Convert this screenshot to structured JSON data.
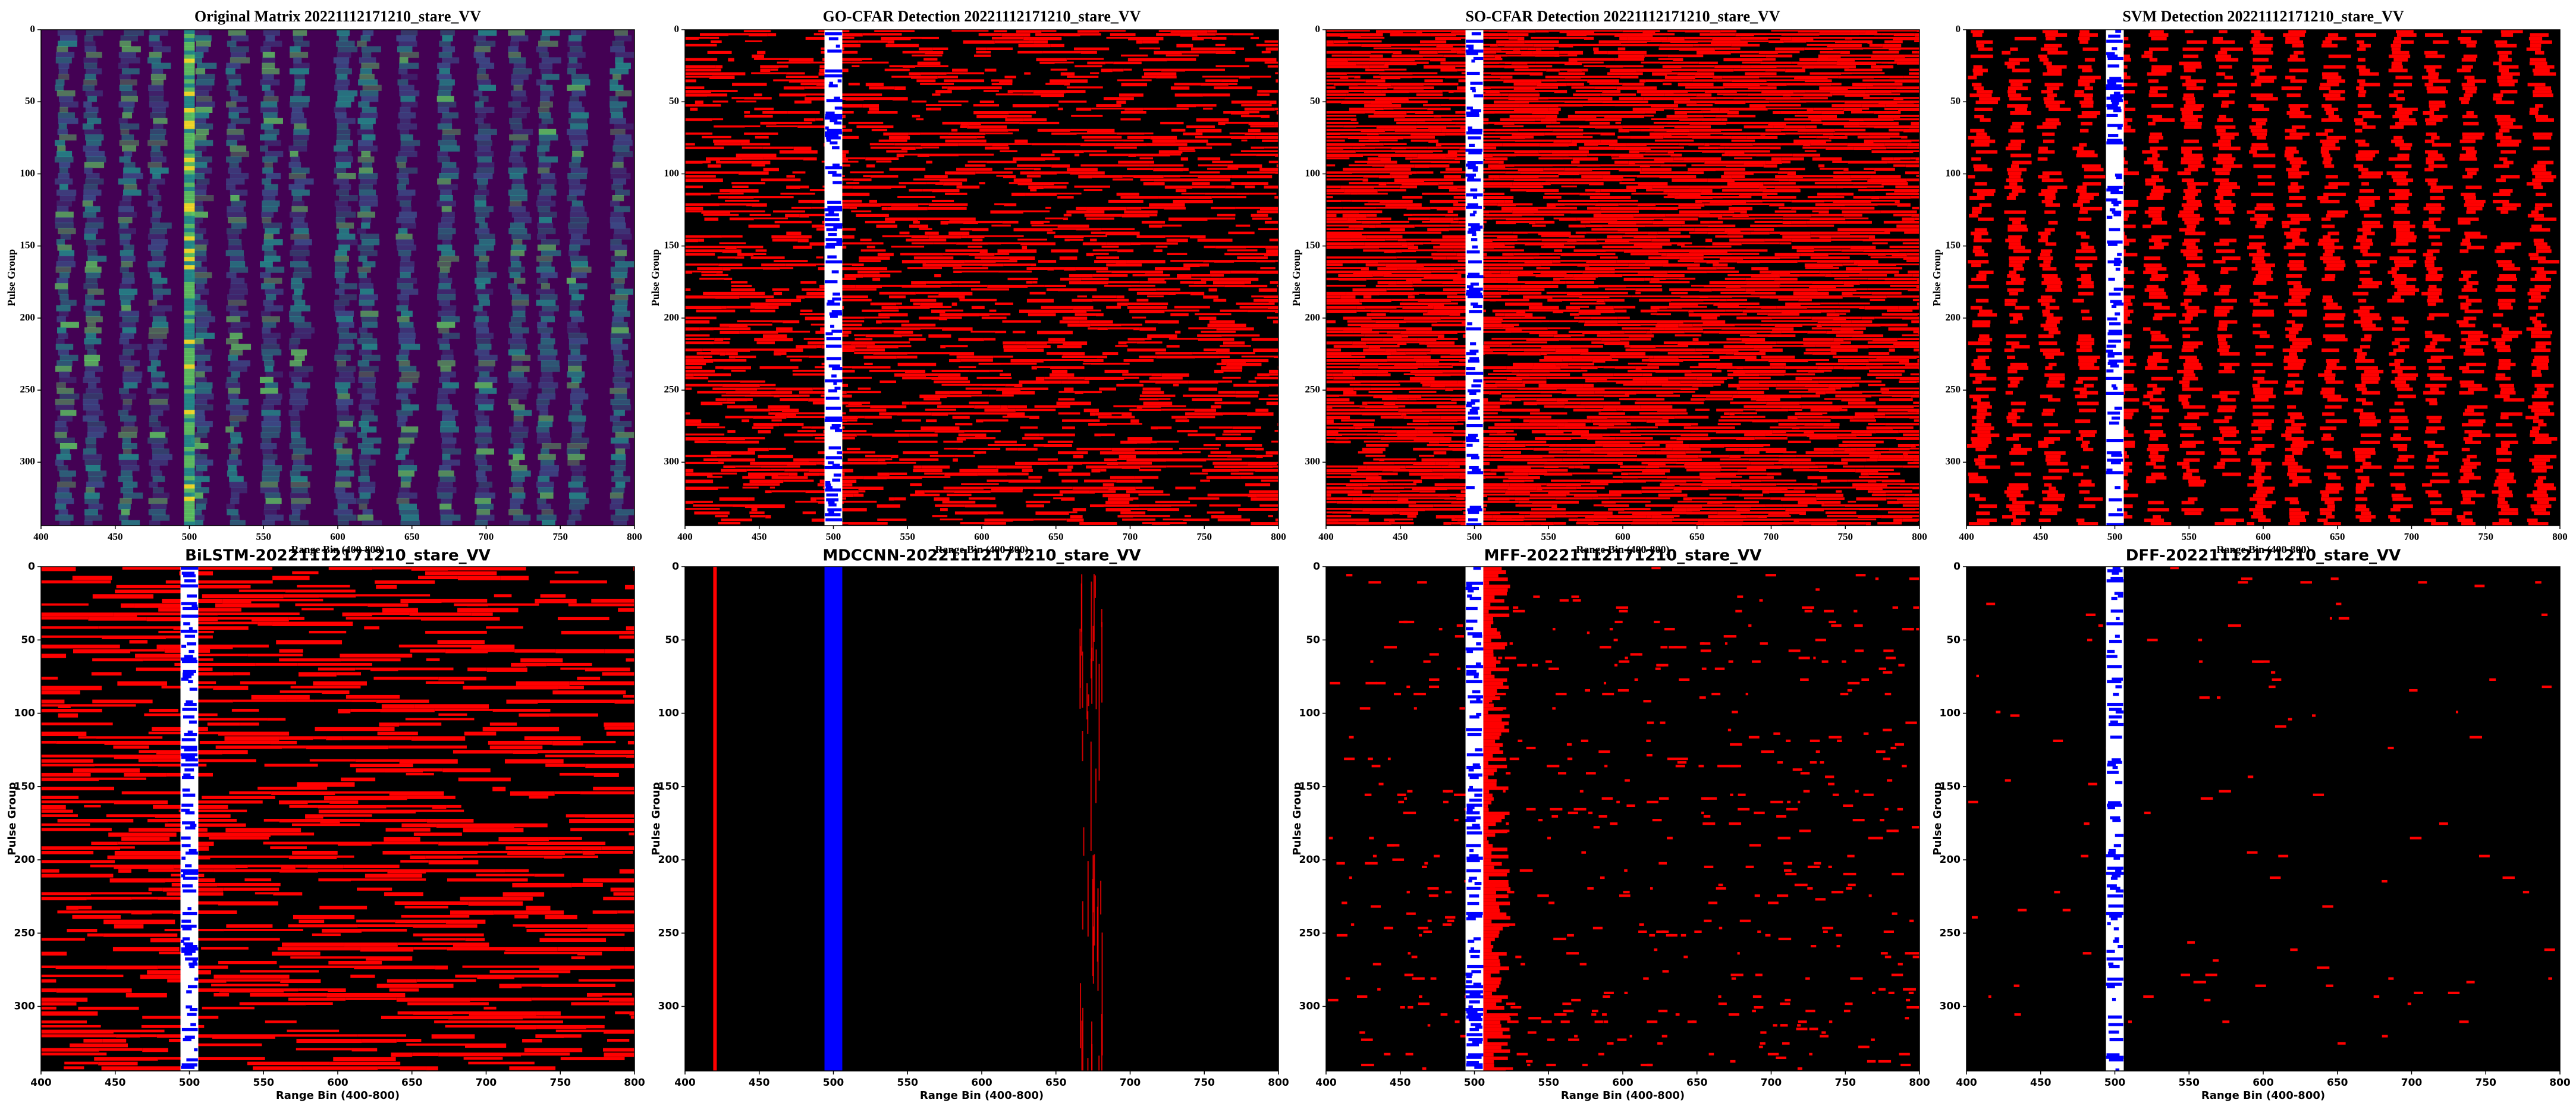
{
  "chart_data": [
    {
      "type": "heatmap",
      "title": "Original Matrix 20221112171210_stare_VV",
      "xlabel": "Range Bin (400-800)",
      "ylabel": "Pulse Group",
      "xlim": [
        400,
        800
      ],
      "xticks": [
        400,
        450,
        500,
        550,
        600,
        650,
        700,
        750,
        800
      ],
      "ylim": [
        344,
        0
      ],
      "yticks": [
        0,
        50,
        100,
        150,
        200,
        250,
        300
      ],
      "colormap": [
        "#440154",
        "#3b528b",
        "#21918c",
        "#5ec962",
        "#fde725"
      ]
    },
    {
      "type": "detection",
      "title": "GO-CFAR Detection 20221112171210_stare_VV",
      "xlabel": "Range Bin (400-800)",
      "ylabel": "Pulse Group",
      "xlim": [
        400,
        800
      ],
      "xticks": [
        400,
        450,
        500,
        550,
        600,
        650,
        700,
        750,
        800
      ],
      "ylim": [
        344,
        0
      ],
      "yticks": [
        0,
        50,
        100,
        150,
        200,
        250,
        300
      ],
      "background": "#000000",
      "detection_color": "#ff0000",
      "target_bins": [
        494,
        506
      ],
      "target_background": "#ffffff",
      "target_color": "#0000ff"
    },
    {
      "type": "detection",
      "title": "SO-CFAR Detection 20221112171210_stare_VV",
      "xlabel": "Range Bin (400-800)",
      "ylabel": "Pulse Group",
      "xlim": [
        400,
        800
      ],
      "xticks": [
        400,
        450,
        500,
        550,
        600,
        650,
        700,
        750,
        800
      ],
      "ylim": [
        344,
        0
      ],
      "yticks": [
        0,
        50,
        100,
        150,
        200,
        250,
        300
      ],
      "background": "#000000",
      "detection_color": "#ff0000",
      "target_bins": [
        494,
        506
      ],
      "target_background": "#ffffff",
      "target_color": "#0000ff"
    },
    {
      "type": "detection",
      "title": "SVM Detection 20221112171210_stare_VV",
      "xlabel": "Range Bin (400-800)",
      "ylabel": "Pulse Group",
      "xlim": [
        400,
        800
      ],
      "xticks": [
        400,
        450,
        500,
        550,
        600,
        650,
        700,
        750,
        800
      ],
      "ylim": [
        344,
        0
      ],
      "yticks": [
        0,
        50,
        100,
        150,
        200,
        250,
        300
      ],
      "background": "#000000",
      "detection_color": "#ff0000",
      "target_bins": [
        494,
        506
      ],
      "target_background": "#ffffff",
      "target_color": "#0000ff"
    },
    {
      "type": "detection",
      "title": "BiLSTM-20221112171210_stare_VV",
      "xlabel": "Range Bin (400-800)",
      "ylabel": "Pulse Group",
      "xlim": [
        400,
        800
      ],
      "xticks": [
        400,
        450,
        500,
        550,
        600,
        650,
        700,
        750,
        800
      ],
      "ylim": [
        344,
        0
      ],
      "yticks": [
        0,
        50,
        100,
        150,
        200,
        250,
        300
      ],
      "background": "#000000",
      "detection_color": "#ff0000",
      "target_bins": [
        494,
        506
      ],
      "target_background": "#ffffff",
      "target_color": "#0000ff"
    },
    {
      "type": "detection",
      "title": "MDCCNN-20221112171210_stare_VV",
      "xlabel": "Range Bin (400-800)",
      "ylabel": "Pulse Group",
      "xlim": [
        400,
        800
      ],
      "xticks": [
        400,
        450,
        500,
        550,
        600,
        650,
        700,
        750,
        800
      ],
      "ylim": [
        344,
        0
      ],
      "yticks": [
        0,
        50,
        100,
        150,
        200,
        250,
        300
      ],
      "background": "#000000",
      "detection_color": "#ff0000",
      "target_bins": [
        494,
        506
      ],
      "target_background": "#0000ff",
      "target_color": "#0000ff"
    },
    {
      "type": "detection",
      "title": "MFF-20221112171210_stare_VV",
      "xlabel": "Range Bin (400-800)",
      "ylabel": "Pulse Group",
      "xlim": [
        400,
        800
      ],
      "xticks": [
        400,
        450,
        500,
        550,
        600,
        650,
        700,
        750,
        800
      ],
      "ylim": [
        344,
        0
      ],
      "yticks": [
        0,
        50,
        100,
        150,
        200,
        250,
        300
      ],
      "background": "#000000",
      "detection_color": "#ff0000",
      "target_bins": [
        494,
        506
      ],
      "target_background": "#ffffff",
      "target_color": "#0000ff"
    },
    {
      "type": "detection",
      "title": "DFF-20221112171210_stare_VV",
      "xlabel": "Range Bin (400-800)",
      "ylabel": "Pulse Group",
      "xlim": [
        400,
        800
      ],
      "xticks": [
        400,
        450,
        500,
        550,
        600,
        650,
        700,
        750,
        800
      ],
      "ylim": [
        344,
        0
      ],
      "yticks": [
        0,
        50,
        100,
        150,
        200,
        250,
        300
      ],
      "background": "#000000",
      "detection_color": "#ff0000",
      "target_bins": [
        494,
        506
      ],
      "target_background": "#ffffff",
      "target_color": "#0000ff"
    }
  ]
}
